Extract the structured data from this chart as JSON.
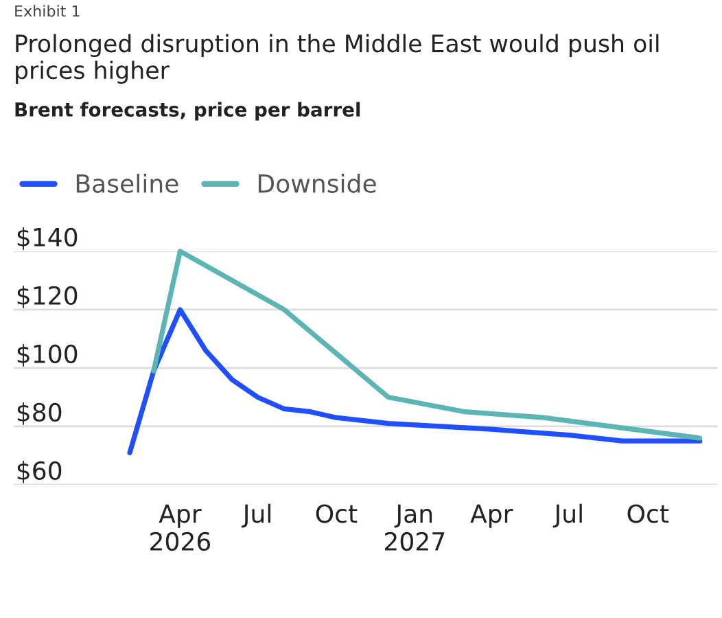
{
  "chart_data": {
    "type": "line",
    "title": "Prolonged disruption in the Middle East would push oil prices higher",
    "subtitle": "Brent forecasts, price per barrel",
    "annotations": [
      "Exhibit 1"
    ],
    "series": [
      {
        "name": "Baseline",
        "color": "#1f4fff",
        "x": [
          "2026-02",
          "2026-03",
          "2026-04",
          "2026-05",
          "2026-06",
          "2026-07",
          "2026-08",
          "2026-09",
          "2026-10",
          "2026-12",
          "2027-04",
          "2027-07",
          "2027-09",
          "2027-12"
        ],
        "values": [
          71,
          99,
          120,
          106,
          96,
          90,
          86,
          85,
          83,
          81,
          79,
          77,
          75,
          75
        ]
      },
      {
        "name": "Downside",
        "color": "#5bb5b5",
        "x": [
          "2026-03",
          "2026-04",
          "2026-08",
          "2026-12",
          "2027-03",
          "2027-06",
          "2027-12"
        ],
        "values": [
          99,
          140,
          120,
          90,
          85,
          83,
          76
        ]
      }
    ],
    "xlim": [
      "2025-09-18",
      "2027-12-22"
    ],
    "xticks": [
      {
        "value": "2026-04",
        "label": "Apr\n2026"
      },
      {
        "value": "2026-07",
        "label": "Jul"
      },
      {
        "value": "2026-10",
        "label": "Oct"
      },
      {
        "value": "2027-01",
        "label": "Jan\n2027"
      },
      {
        "value": "2027-04",
        "label": "Apr"
      },
      {
        "value": "2027-07",
        "label": "Jul"
      },
      {
        "value": "2027-10",
        "label": "Oct"
      }
    ],
    "ylim": [
      60,
      140
    ],
    "yticks": [
      {
        "value": 60,
        "label": "$60"
      },
      {
        "value": 80,
        "label": "$80"
      },
      {
        "value": 100,
        "label": "$100"
      },
      {
        "value": 120,
        "label": "$120"
      },
      {
        "value": 140,
        "label": "$140"
      }
    ],
    "grid": "y",
    "legend": "top left",
    "marker": "none",
    "line_style": "solid"
  }
}
